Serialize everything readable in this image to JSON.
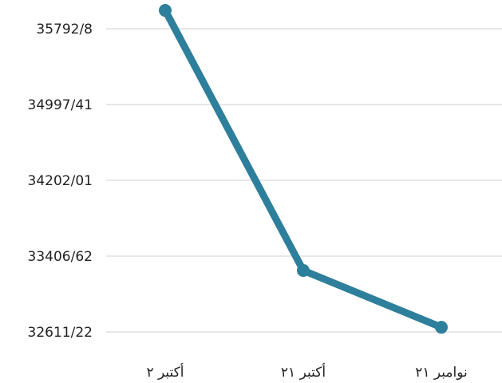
{
  "chart_data": {
    "type": "line",
    "categories": [
      "أكتبر ٢",
      "أكتبر ٢١",
      "نوامبر ٢١"
    ],
    "y_tick_labels": [
      "35792/8",
      "34997/41",
      "34202/01",
      "33406/62",
      "32611/22"
    ],
    "y_ticks": [
      35792.8,
      34997.41,
      34202.01,
      33406.62,
      32611.22
    ],
    "ylim": [
      32611.22,
      35792.8
    ],
    "series": [
      {
        "values": [
          35985,
          33256,
          32660
        ],
        "color": "#2e7f9b"
      }
    ],
    "grid": true,
    "legend": "none"
  }
}
